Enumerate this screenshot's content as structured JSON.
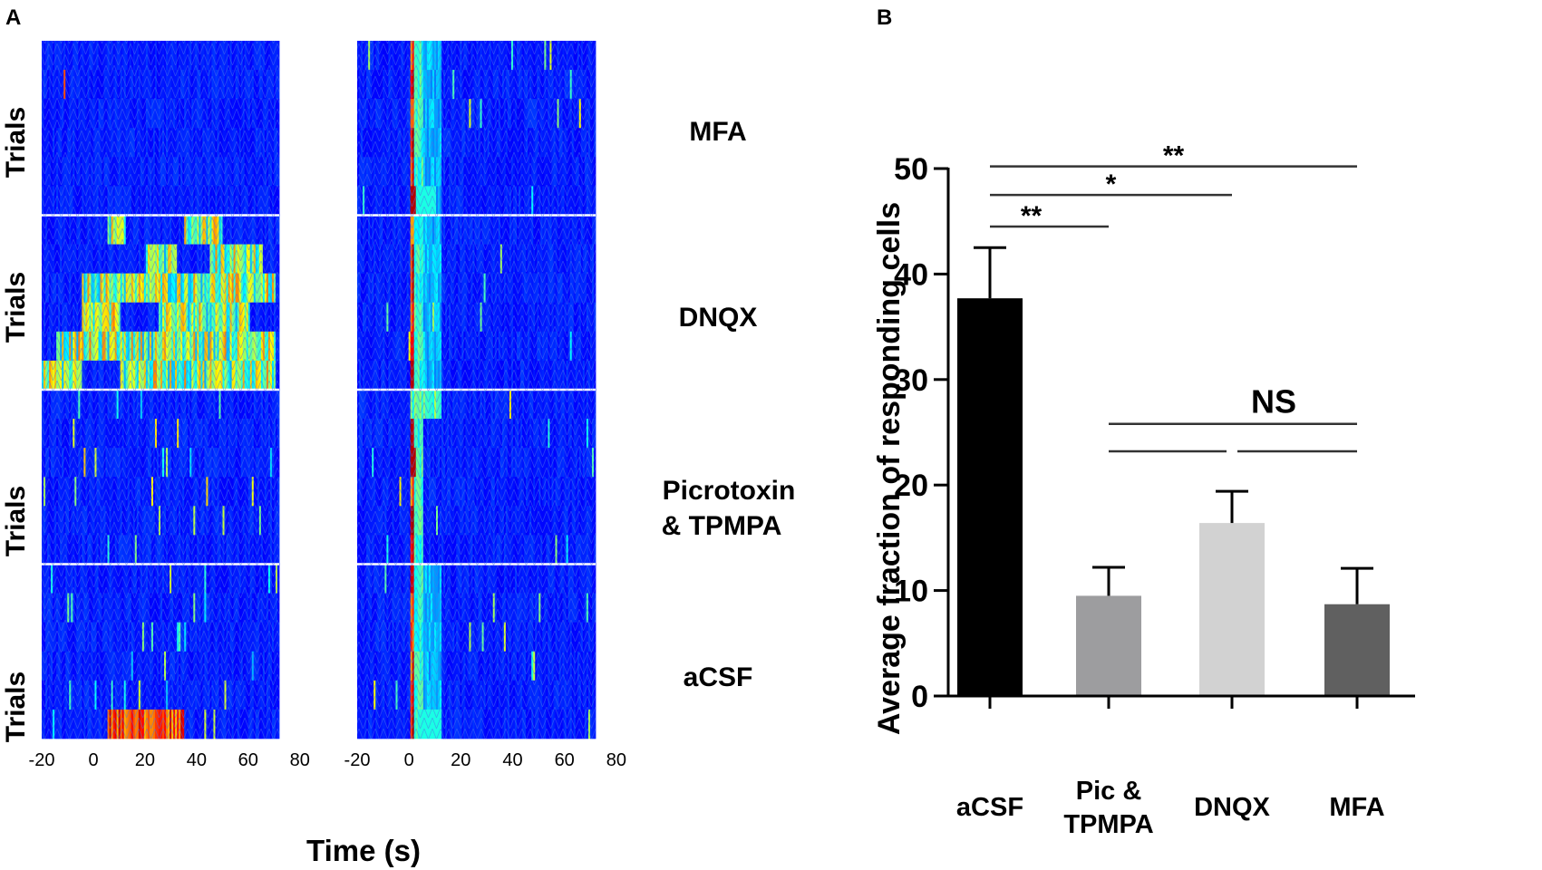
{
  "panel_labels": {
    "a": "A",
    "b": "B"
  },
  "raster": {
    "ylabel": "Trials",
    "xlabel": "Time (s)",
    "xticks": [
      "-20",
      "0",
      "20",
      "40",
      "60",
      "80"
    ],
    "x_range": [
      -20,
      72
    ],
    "conditions": [
      {
        "label": [
          "MFA"
        ]
      },
      {
        "label": [
          "DNQX"
        ]
      },
      {
        "label": [
          "Picrotoxin",
          "& TPMPA"
        ]
      },
      {
        "label": [
          "aCSF"
        ]
      }
    ],
    "trials_per_condition": 6,
    "colormap": "jet"
  },
  "chart_data": {
    "type": "bar",
    "title": "",
    "xlabel": "",
    "ylabel": "Average fraction of responding cells",
    "ylim": [
      0,
      50
    ],
    "yticks": [
      "0",
      "10",
      "20",
      "30",
      "40",
      "50"
    ],
    "categories": [
      [
        "aCSF"
      ],
      [
        "Pic &",
        "TPMPA"
      ],
      [
        "DNQX"
      ],
      [
        "MFA"
      ]
    ],
    "values": [
      37.7,
      9.5,
      16.4,
      8.7
    ],
    "errors": [
      4.8,
      2.7,
      3.0,
      3.4
    ],
    "bar_colors": [
      "#000000",
      "#9d9d9f",
      "#d2d2d2",
      "#606060"
    ],
    "annotations": [
      {
        "from": 0,
        "to": 1,
        "y": 44.5,
        "label": "**"
      },
      {
        "from": 0,
        "to": 2,
        "y": 47.5,
        "label": "*"
      },
      {
        "from": 0,
        "to": 3,
        "y": 50.2,
        "label": "**"
      },
      {
        "from": 1,
        "to": 2,
        "y": 23.2,
        "label": ""
      },
      {
        "from": 2,
        "to": 3,
        "y": 23.2,
        "label": ""
      },
      {
        "from": 1,
        "to": 3,
        "y": 25.8,
        "label": "NS"
      }
    ]
  }
}
